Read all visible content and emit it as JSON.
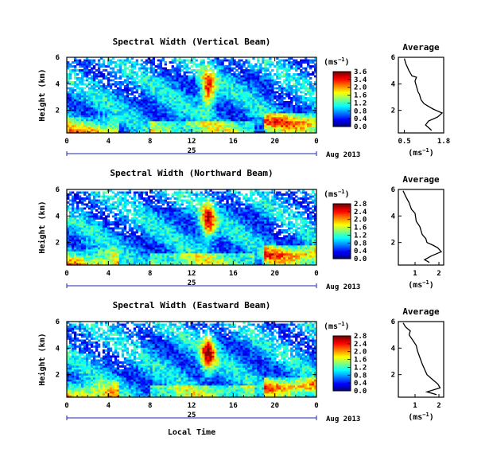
{
  "chart_data": [
    {
      "type": "heatmap",
      "title": "Spectral Width (Vertical Beam)",
      "ylabel": "Height (km)",
      "xlim": [
        0,
        24
      ],
      "ylim": [
        0.3,
        6
      ],
      "x_ticks": [
        "0",
        "4",
        "8",
        "12",
        "16",
        "20",
        "0"
      ],
      "y_ticks": [
        "2",
        "4",
        "6"
      ],
      "date_axis": {
        "label": "25",
        "month_year": "Aug 2013"
      },
      "colorbar": {
        "unit": "(ms",
        "unit_exp": "−1",
        "unit_close": ")",
        "ticks": [
          "3.6",
          "3.4",
          "2.0",
          "1.6",
          "1.2",
          "0.8",
          "0.4",
          "0.0"
        ],
        "range": [
          0,
          3.6
        ]
      },
      "profile": {
        "title": "Average",
        "xlabel": "(ms",
        "xlabel_exp": "−1",
        "xlabel_close": ")",
        "x_ticks": [
          "0.5",
          "1.8"
        ],
        "xlim": [
          0.3,
          1.8
        ],
        "ylim": [
          0.3,
          6
        ],
        "y_ticks": [
          "2",
          "4",
          "6"
        ],
        "points": [
          [
            0.5,
            5.9
          ],
          [
            0.55,
            5.5
          ],
          [
            0.65,
            5.0
          ],
          [
            0.75,
            4.6
          ],
          [
            0.9,
            4.5
          ],
          [
            0.85,
            4.2
          ],
          [
            0.9,
            3.8
          ],
          [
            0.95,
            3.4
          ],
          [
            1.0,
            3.2
          ],
          [
            1.05,
            2.8
          ],
          [
            1.15,
            2.5
          ],
          [
            1.3,
            2.3
          ],
          [
            1.45,
            2.1
          ],
          [
            1.55,
            2.0
          ],
          [
            1.75,
            1.8
          ],
          [
            1.6,
            1.5
          ],
          [
            1.3,
            1.2
          ],
          [
            1.2,
            0.9
          ],
          [
            1.4,
            0.5
          ]
        ]
      }
    },
    {
      "type": "heatmap",
      "title": "Spectral Width (Northward Beam)",
      "ylabel": "Height (km)",
      "xlim": [
        0,
        24
      ],
      "ylim": [
        0.3,
        6
      ],
      "x_ticks": [
        "0",
        "4",
        "8",
        "12",
        "16",
        "20",
        "0"
      ],
      "y_ticks": [
        "2",
        "4",
        "6"
      ],
      "date_axis": {
        "label": "25",
        "month_year": "Aug 2013"
      },
      "colorbar": {
        "unit": "(ms",
        "unit_exp": "−1",
        "unit_close": ")",
        "ticks": [
          "2.8",
          "2.4",
          "2.0",
          "1.6",
          "1.2",
          "0.8",
          "0.4",
          "0.0"
        ],
        "range": [
          0,
          2.8
        ]
      },
      "profile": {
        "title": "Average",
        "xlabel": "(ms",
        "xlabel_exp": "−1",
        "xlabel_close": ")",
        "x_ticks": [
          "1",
          "2"
        ],
        "xlim": [
          0.3,
          2.2
        ],
        "ylim": [
          0.3,
          6
        ],
        "y_ticks": [
          "2",
          "4",
          "6"
        ],
        "points": [
          [
            0.5,
            5.9
          ],
          [
            0.6,
            5.5
          ],
          [
            0.75,
            5.0
          ],
          [
            0.85,
            4.5
          ],
          [
            1.0,
            4.2
          ],
          [
            1.05,
            3.6
          ],
          [
            1.2,
            3.2
          ],
          [
            1.3,
            2.6
          ],
          [
            1.45,
            2.3
          ],
          [
            1.5,
            2.0
          ],
          [
            1.75,
            1.8
          ],
          [
            1.95,
            1.6
          ],
          [
            2.1,
            1.3
          ],
          [
            1.7,
            1.0
          ],
          [
            1.4,
            0.7
          ],
          [
            1.6,
            0.5
          ]
        ]
      }
    },
    {
      "type": "heatmap",
      "title": "Spectral Width (Eastward Beam)",
      "ylabel": "Height (km)",
      "xlabel": "Local Time",
      "xlim": [
        0,
        24
      ],
      "ylim": [
        0.3,
        6
      ],
      "x_ticks": [
        "0",
        "4",
        "8",
        "12",
        "16",
        "20",
        "0"
      ],
      "y_ticks": [
        "2",
        "4",
        "6"
      ],
      "date_axis": {
        "label": "25",
        "month_year": "Aug 2013"
      },
      "colorbar": {
        "unit": "(ms",
        "unit_exp": "−1",
        "unit_close": ")",
        "ticks": [
          "2.8",
          "2.4",
          "2.0",
          "1.6",
          "1.2",
          "0.8",
          "0.4",
          "0.0"
        ],
        "range": [
          0,
          2.8
        ]
      },
      "profile": {
        "title": "Average",
        "xlabel": "(ms",
        "xlabel_exp": "−1",
        "xlabel_close": ")",
        "x_ticks": [
          "1",
          "2"
        ],
        "xlim": [
          0.3,
          2.2
        ],
        "ylim": [
          0.3,
          6
        ],
        "y_ticks": [
          "2",
          "4",
          "6"
        ],
        "points": [
          [
            0.5,
            5.9
          ],
          [
            0.6,
            5.6
          ],
          [
            0.8,
            5.3
          ],
          [
            0.75,
            5.0
          ],
          [
            0.9,
            4.6
          ],
          [
            1.05,
            4.2
          ],
          [
            1.1,
            3.8
          ],
          [
            1.2,
            3.3
          ],
          [
            1.3,
            2.8
          ],
          [
            1.4,
            2.4
          ],
          [
            1.5,
            2.0
          ],
          [
            1.75,
            1.6
          ],
          [
            1.95,
            1.3
          ],
          [
            2.05,
            1.0
          ],
          [
            1.5,
            0.7
          ],
          [
            1.9,
            0.5
          ]
        ]
      }
    }
  ]
}
